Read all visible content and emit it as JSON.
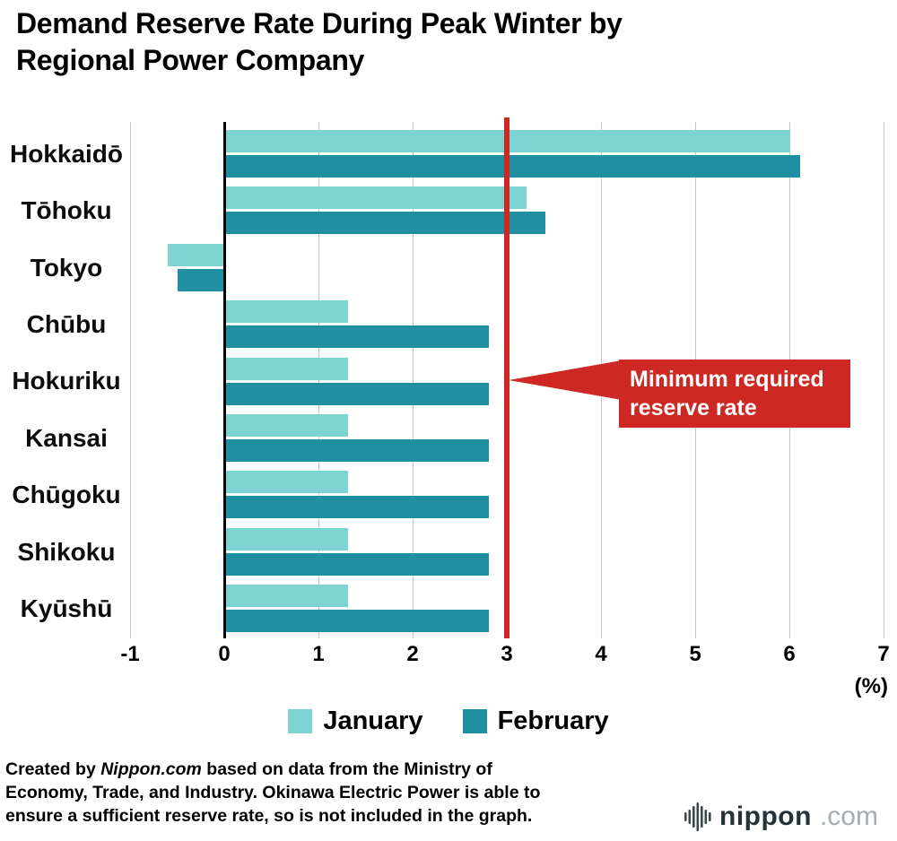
{
  "title": "Demand Reserve Rate During Peak Winter by Regional Power Company",
  "chart_data": {
    "type": "bar",
    "orientation": "horizontal",
    "categories": [
      "Hokkaidō",
      "Tōhoku",
      "Tokyo",
      "Chūbu",
      "Hokuriku",
      "Kansai",
      "Chūgoku",
      "Shikoku",
      "Kyūshū"
    ],
    "series": [
      {
        "name": "January",
        "color": "#7dd3d2",
        "values": [
          6.0,
          3.2,
          -0.6,
          1.3,
          1.3,
          1.3,
          1.3,
          1.3,
          1.3
        ]
      },
      {
        "name": "February",
        "color": "#1f8fa1",
        "values": [
          6.1,
          3.4,
          -0.5,
          2.8,
          2.8,
          2.8,
          2.8,
          2.8,
          2.8
        ]
      }
    ],
    "x_ticks": [
      -1,
      0,
      1,
      2,
      3,
      4,
      5,
      6,
      7
    ],
    "xlim": [
      -1,
      7
    ],
    "x_unit_label": "(%)",
    "grid": true,
    "legend_position": "bottom",
    "reference_line": {
      "value": 3,
      "color": "#ce2824",
      "label": "Minimum required reserve rate",
      "label_text_color": "#ffffff"
    }
  },
  "footer": {
    "lines": [
      {
        "pre": "Created by ",
        "italic": "Nippon.com",
        "post": " based on data from the Ministry of"
      },
      {
        "post": "Economy, Trade, and Industry. Okinawa Electric Power is able to"
      },
      {
        "post": "ensure a sufficient reserve rate, so is not included in the graph."
      }
    ]
  },
  "logo": {
    "name": "nippon",
    "tld": ".com"
  },
  "colors": {
    "background": "#ffffff",
    "grid": "#c8c8c8",
    "axis": "#000000",
    "text": "#000000"
  }
}
